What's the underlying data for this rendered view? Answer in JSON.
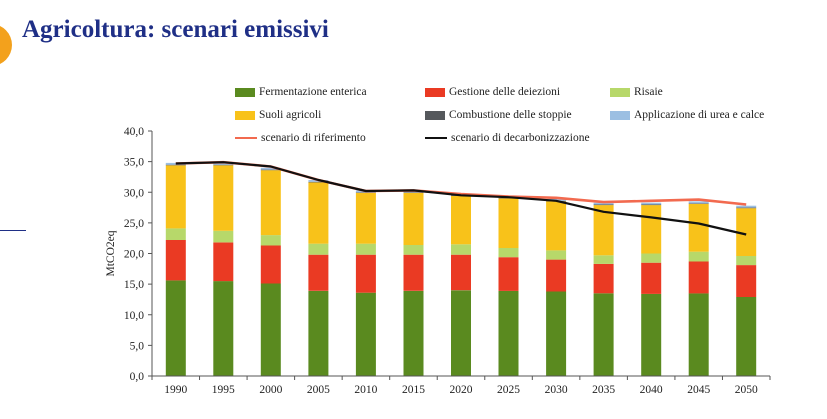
{
  "page": {
    "title": "Agricoltura: scenari emissivi"
  },
  "colors": {
    "title": "#1f2f86",
    "fermentazione": "#5a8a1f",
    "gestione": "#ea3a23",
    "risaie": "#b7d86a",
    "suoli": "#f8c21a",
    "combustione": "#55585c",
    "urea": "#9cbfe2",
    "riferimento": "#f26a4f",
    "decarbonizzazione": "#111111"
  },
  "chart_data": {
    "type": "bar",
    "stacked": true,
    "categories": [
      "1990",
      "1995",
      "2000",
      "2005",
      "2010",
      "2015",
      "2020",
      "2025",
      "2030",
      "2035",
      "2040",
      "2045",
      "2050"
    ],
    "ylabel": "MtCO2eq",
    "ylim": [
      0,
      40
    ],
    "yticks": [
      "0,0",
      "5,0",
      "10,0",
      "15,0",
      "20,0",
      "25,0",
      "30,0",
      "35,0",
      "40,0"
    ],
    "grid": false,
    "legend_position": "top",
    "series": [
      {
        "name": "Fermentazione enterica",
        "color_key": "fermentazione",
        "values": [
          15.6,
          15.5,
          15.1,
          13.9,
          13.6,
          13.9,
          14.0,
          13.9,
          13.8,
          13.5,
          13.4,
          13.5,
          12.9
        ]
      },
      {
        "name": "Gestione delle deiezioni",
        "color_key": "gestione",
        "values": [
          6.6,
          6.3,
          6.2,
          5.9,
          6.2,
          5.9,
          5.8,
          5.5,
          5.2,
          4.8,
          5.1,
          5.2,
          5.2
        ]
      },
      {
        "name": "Risaie",
        "color_key": "risaie",
        "values": [
          1.9,
          1.9,
          1.7,
          1.8,
          1.8,
          1.6,
          1.7,
          1.5,
          1.5,
          1.4,
          1.5,
          1.6,
          1.5
        ]
      },
      {
        "name": "Suoli agricoli",
        "color_key": "suoli",
        "values": [
          10.3,
          10.7,
          10.6,
          10.0,
          8.3,
          8.5,
          7.9,
          8.1,
          8.0,
          8.2,
          7.9,
          7.8,
          7.8
        ]
      },
      {
        "name": "Combustione delle stoppie",
        "color_key": "combustione",
        "values": [
          0.1,
          0.1,
          0.1,
          0.1,
          0.1,
          0.1,
          0.1,
          0.1,
          0.1,
          0.1,
          0.1,
          0.1,
          0.1
        ]
      },
      {
        "name": "Applicazione di urea e calce",
        "color_key": "urea",
        "values": [
          0.3,
          0.3,
          0.3,
          0.3,
          0.3,
          0.3,
          0.3,
          0.3,
          0.3,
          0.3,
          0.3,
          0.3,
          0.3
        ]
      },
      {
        "name": "scenario di riferimento",
        "type": "line",
        "color_key": "riferimento",
        "values": [
          34.7,
          34.9,
          34.2,
          32.0,
          30.2,
          30.3,
          29.7,
          29.3,
          29.1,
          28.4,
          28.6,
          28.8,
          28.0
        ]
      },
      {
        "name": "scenario di decarbonizzazione",
        "type": "line",
        "color_key": "decarbonizzazione",
        "values": [
          34.7,
          34.9,
          34.2,
          32.0,
          30.2,
          30.3,
          29.5,
          29.2,
          28.6,
          26.8,
          25.9,
          24.9,
          23.1
        ]
      }
    ]
  }
}
